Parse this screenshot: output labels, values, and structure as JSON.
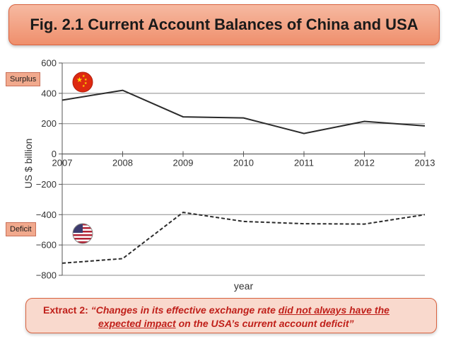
{
  "title": "Fig. 2.1 Current Account Balances of China and USA",
  "labels": {
    "surplus": "Surplus",
    "deficit": "Deficit"
  },
  "extract": {
    "prefix": "Extract 2: ",
    "part1": "“Changes in its effective exchange rate ",
    "underlined1": "did not always have the",
    "underlined2": "expected impact",
    "part2": " on the USA’s current account deficit”"
  },
  "flags": {
    "china": "china-flag-icon",
    "usa": "usa-flag-icon"
  },
  "colors": {
    "title_bg": "#ef8f6c",
    "china_flag": "#de2910",
    "usa_blue": "#3c3b6e",
    "usa_red": "#b22234",
    "extract_text": "#c0201a"
  },
  "chart_data": {
    "type": "line",
    "x": [
      2007,
      2008,
      2009,
      2010,
      2011,
      2012,
      2013
    ],
    "series": [
      {
        "name": "China",
        "style": "solid",
        "values": [
          355,
          420,
          245,
          238,
          135,
          215,
          185
        ]
      },
      {
        "name": "USA",
        "style": "dashed",
        "values": [
          -720,
          -690,
          -385,
          -445,
          -460,
          -462,
          -400
        ]
      }
    ],
    "xlabel": "year",
    "ylabel": "US $ billion",
    "ylim": [
      -800,
      600
    ],
    "yticks": [
      600,
      400,
      200,
      0,
      -200,
      -400,
      -600,
      -800
    ],
    "xticks": [
      2007,
      2008,
      2009,
      2010,
      2011,
      2012,
      2013
    ],
    "grid": true
  }
}
